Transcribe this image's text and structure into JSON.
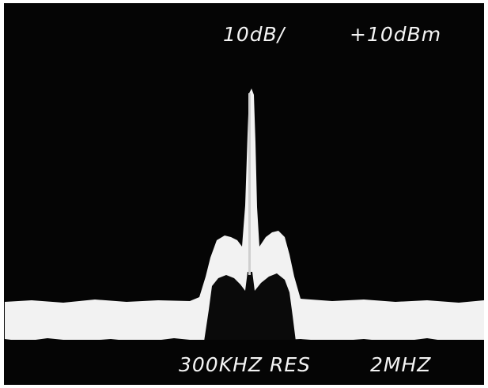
{
  "display": {
    "scale": "10dB/",
    "reference_level": "+10dBm",
    "resolution_bandwidth": "300KHZ RES",
    "span": "2MHZ"
  }
}
